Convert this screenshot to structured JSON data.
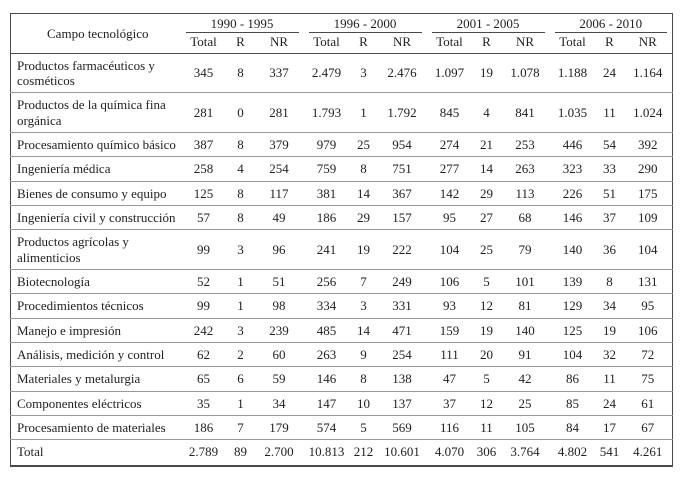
{
  "table": {
    "corner_label": "Campo tecnológico",
    "periods": [
      "1990 - 1995",
      "1996 - 2000",
      "2001 - 2005",
      "2006 - 2010"
    ],
    "sub_headers": [
      "Total",
      "R",
      "NR"
    ],
    "rows": [
      {
        "label": "Productos farmacéuticos y cosméticos",
        "values": [
          "345",
          "8",
          "337",
          "2.479",
          "3",
          "2.476",
          "1.097",
          "19",
          "1.078",
          "1.188",
          "24",
          "1.164"
        ]
      },
      {
        "label": "Productos de la química fina orgánica",
        "values": [
          "281",
          "0",
          "281",
          "1.793",
          "1",
          "1.792",
          "845",
          "4",
          "841",
          "1.035",
          "11",
          "1.024"
        ]
      },
      {
        "label": "Procesamiento químico básico",
        "values": [
          "387",
          "8",
          "379",
          "979",
          "25",
          "954",
          "274",
          "21",
          "253",
          "446",
          "54",
          "392"
        ]
      },
      {
        "label": "Ingeniería médica",
        "values": [
          "258",
          "4",
          "254",
          "759",
          "8",
          "751",
          "277",
          "14",
          "263",
          "323",
          "33",
          "290"
        ]
      },
      {
        "label": "Bienes de consumo y equipo",
        "values": [
          "125",
          "8",
          "117",
          "381",
          "14",
          "367",
          "142",
          "29",
          "113",
          "226",
          "51",
          "175"
        ]
      },
      {
        "label": "Ingeniería civil y construcción",
        "values": [
          "57",
          "8",
          "49",
          "186",
          "29",
          "157",
          "95",
          "27",
          "68",
          "146",
          "37",
          "109"
        ]
      },
      {
        "label": "Productos agrícolas y alimenticios",
        "values": [
          "99",
          "3",
          "96",
          "241",
          "19",
          "222",
          "104",
          "25",
          "79",
          "140",
          "36",
          "104"
        ]
      },
      {
        "label": "Biotecnología",
        "values": [
          "52",
          "1",
          "51",
          "256",
          "7",
          "249",
          "106",
          "5",
          "101",
          "139",
          "8",
          "131"
        ]
      },
      {
        "label": "Procedimientos técnicos",
        "values": [
          "99",
          "1",
          "98",
          "334",
          "3",
          "331",
          "93",
          "12",
          "81",
          "129",
          "34",
          "95"
        ]
      },
      {
        "label": "Manejo e impresión",
        "values": [
          "242",
          "3",
          "239",
          "485",
          "14",
          "471",
          "159",
          "19",
          "140",
          "125",
          "19",
          "106"
        ]
      },
      {
        "label": "Análisis, medición y control",
        "values": [
          "62",
          "2",
          "60",
          "263",
          "9",
          "254",
          "111",
          "20",
          "91",
          "104",
          "32",
          "72"
        ]
      },
      {
        "label": "Materiales y metalurgia",
        "values": [
          "65",
          "6",
          "59",
          "146",
          "8",
          "138",
          "47",
          "5",
          "42",
          "86",
          "11",
          "75"
        ]
      },
      {
        "label": "Componentes eléctricos",
        "values": [
          "35",
          "1",
          "34",
          "147",
          "10",
          "137",
          "37",
          "12",
          "25",
          "85",
          "24",
          "61"
        ]
      },
      {
        "label": "Procesamiento de materiales",
        "values": [
          "186",
          "7",
          "179",
          "574",
          "5",
          "569",
          "116",
          "11",
          "105",
          "84",
          "17",
          "67"
        ]
      }
    ],
    "total_row": {
      "label": "Total",
      "values": [
        "2.789",
        "89",
        "2.700",
        "10.813",
        "212",
        "10.601",
        "4.070",
        "306",
        "3.764",
        "4.802",
        "541",
        "4.261"
      ]
    }
  },
  "colors": {
    "background": "#ffffff",
    "text": "#1f1f1f",
    "border_dark": "#4a4a4a",
    "border_light": "#9a9a9a"
  }
}
